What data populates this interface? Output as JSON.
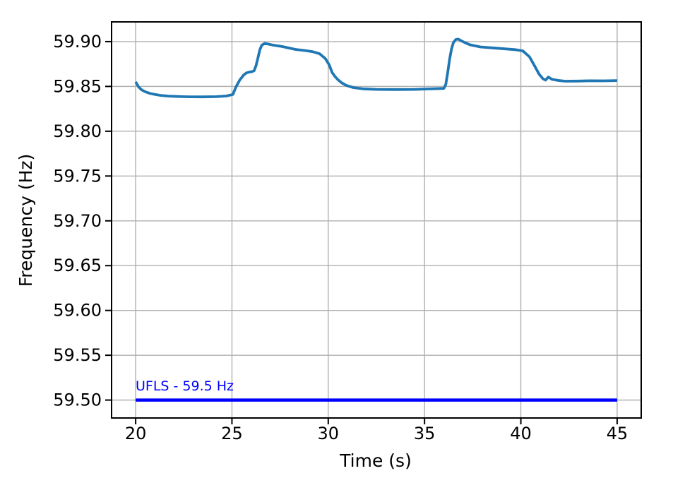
{
  "chart_data": {
    "type": "line",
    "title": "",
    "xlabel": "Time (s)",
    "ylabel": "Frequency (Hz)",
    "xlim": [
      18.75,
      46.25
    ],
    "ylim": [
      59.48,
      59.922
    ],
    "grid": true,
    "legend": "none",
    "xticks": {
      "values": [
        20,
        25,
        30,
        35,
        40,
        45
      ],
      "labels": [
        "20",
        "25",
        "30",
        "35",
        "40",
        "45"
      ]
    },
    "yticks": {
      "values": [
        59.5,
        59.55,
        59.6,
        59.65,
        59.7,
        59.75,
        59.8,
        59.85,
        59.9
      ],
      "labels": [
        "59.50",
        "59.55",
        "59.60",
        "59.65",
        "59.70",
        "59.75",
        "59.80",
        "59.85",
        "59.90"
      ]
    },
    "series": [
      {
        "name": "system-frequency",
        "color": "#1f77b4",
        "width": 3.8,
        "x": [
          20.0,
          20.15,
          20.3,
          20.5,
          20.75,
          21.0,
          21.3,
          21.7,
          22.2,
          22.8,
          23.5,
          24.2,
          24.7,
          25.05,
          25.2,
          25.4,
          25.6,
          25.75,
          25.9,
          26.05,
          26.15,
          26.25,
          26.35,
          26.45,
          26.55,
          26.7,
          26.9,
          27.1,
          27.6,
          28.3,
          28.8,
          29.2,
          29.55,
          29.85,
          30.05,
          30.2,
          30.35,
          30.5,
          30.7,
          30.95,
          31.3,
          31.8,
          32.5,
          33.5,
          34.5,
          35.3,
          36.0,
          36.1,
          36.2,
          36.3,
          36.4,
          36.5,
          36.62,
          36.75,
          36.9,
          37.1,
          37.35,
          37.9,
          38.7,
          39.7,
          40.1,
          40.45,
          40.7,
          40.95,
          41.15,
          41.28,
          41.43,
          41.6,
          41.9,
          42.3,
          43.0,
          43.6,
          44.3,
          45.0
        ],
        "y": [
          59.855,
          59.8495,
          59.8463,
          59.844,
          59.8422,
          59.841,
          59.84,
          59.8392,
          59.8387,
          59.8384,
          59.8383,
          59.8386,
          59.8393,
          59.841,
          59.849,
          59.857,
          59.8625,
          59.865,
          59.866,
          59.8665,
          59.8675,
          59.873,
          59.882,
          59.891,
          59.896,
          59.898,
          59.8972,
          59.8962,
          59.8945,
          59.8913,
          59.89,
          59.8887,
          59.8865,
          59.881,
          59.874,
          59.8655,
          59.861,
          59.8575,
          59.854,
          59.851,
          59.8487,
          59.8473,
          59.8467,
          59.8465,
          59.8467,
          59.8472,
          59.8478,
          59.852,
          59.865,
          59.88,
          59.892,
          59.899,
          59.9023,
          59.9028,
          59.901,
          59.8988,
          59.8965,
          59.894,
          59.8927,
          59.891,
          59.8896,
          59.883,
          59.8735,
          59.8635,
          59.8585,
          59.857,
          59.8605,
          59.858,
          59.8568,
          59.8558,
          59.856,
          59.8563,
          59.8562,
          59.8565
        ]
      },
      {
        "name": "ufls-threshold",
        "color": "#0000ff",
        "width": 4.5,
        "x": [
          20.0,
          45.0
        ],
        "y": [
          59.5,
          59.5
        ]
      }
    ],
    "annotation": {
      "text": "UFLS - 59.5 Hz",
      "x": 20.0,
      "y": 59.5,
      "color": "#0000ff"
    }
  },
  "figure": {
    "background": "#ffffff",
    "grid_color": "#b0b0b0",
    "spine_color": "#000000"
  }
}
